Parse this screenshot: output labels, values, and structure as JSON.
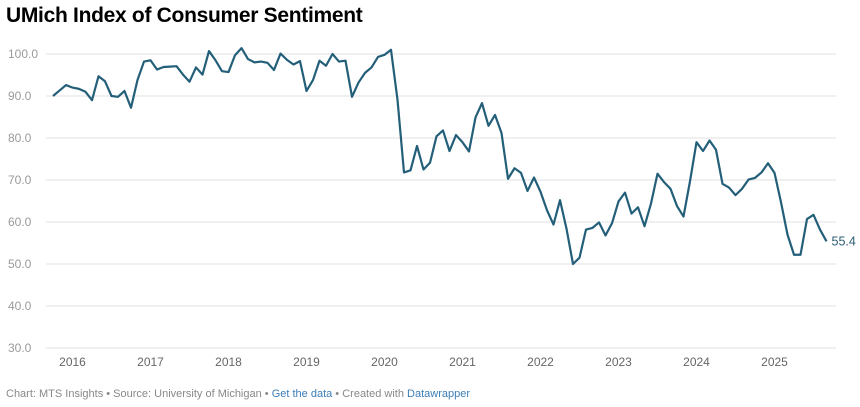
{
  "chart_data": {
    "type": "line",
    "title": "UMich Index of Consumer Sentiment",
    "xlabel": "",
    "ylabel": "",
    "ylim": [
      30,
      100
    ],
    "yticks": [
      "100.0",
      "90.0",
      "80.0",
      "70.0",
      "60.0",
      "50.0",
      "40.0",
      "30.0"
    ],
    "ytick_values": [
      100,
      90,
      80,
      70,
      60,
      50,
      40,
      30
    ],
    "xticks": [
      "2016",
      "2017",
      "2018",
      "2019",
      "2020",
      "2021",
      "2022",
      "2023",
      "2024",
      "2025"
    ],
    "grid": true,
    "legend": "none",
    "line_color": "#245f79",
    "x_start": "2015-10",
    "x_end": "2025-09",
    "frequency": "monthly",
    "end_label": "55.4",
    "series": [
      {
        "name": "Index of Consumer Sentiment",
        "values": [
          90.0,
          91.3,
          92.6,
          92.0,
          91.7,
          91.0,
          89.0,
          94.7,
          93.5,
          90.0,
          89.8,
          91.2,
          87.2,
          93.8,
          98.2,
          98.5,
          96.3,
          96.9,
          97.0,
          97.1,
          95.1,
          93.4,
          96.8,
          95.1,
          100.7,
          98.5,
          95.9,
          95.7,
          99.7,
          101.4,
          98.8,
          98.0,
          98.2,
          97.9,
          96.2,
          100.1,
          98.6,
          97.5,
          98.3,
          91.2,
          93.8,
          98.4,
          97.2,
          100.0,
          98.2,
          98.4,
          89.8,
          93.2,
          95.5,
          96.8,
          99.3,
          99.8,
          101.0,
          89.1,
          71.8,
          72.3,
          78.1,
          72.5,
          74.1,
          80.4,
          81.8,
          76.9,
          80.7,
          79.0,
          76.8,
          84.9,
          88.3,
          82.9,
          85.5,
          81.2,
          70.3,
          72.8,
          71.7,
          67.4,
          70.6,
          67.2,
          62.8,
          59.4,
          65.2,
          58.4,
          50.0,
          51.5,
          58.2,
          58.6,
          59.9,
          56.8,
          59.7,
          64.9,
          67.0,
          62.0,
          63.5,
          59.0,
          64.4,
          71.5,
          69.5,
          67.9,
          63.8,
          61.3,
          69.7,
          79.0,
          76.9,
          79.4,
          77.2,
          69.1,
          68.2,
          66.4,
          67.9,
          70.1,
          70.5,
          71.8,
          74.0,
          71.7,
          64.7,
          57.0,
          52.2,
          52.2,
          60.7,
          61.7,
          58.2,
          55.4
        ]
      }
    ]
  },
  "footer": {
    "chart_credit": "Chart: MTS Insights",
    "sep1": " • ",
    "source": "Source: University of Michigan",
    "sep2": " • ",
    "get_data_link": "Get the data",
    "sep3": " • ",
    "created_with": "Created with ",
    "datawrapper_link": "Datawrapper"
  }
}
